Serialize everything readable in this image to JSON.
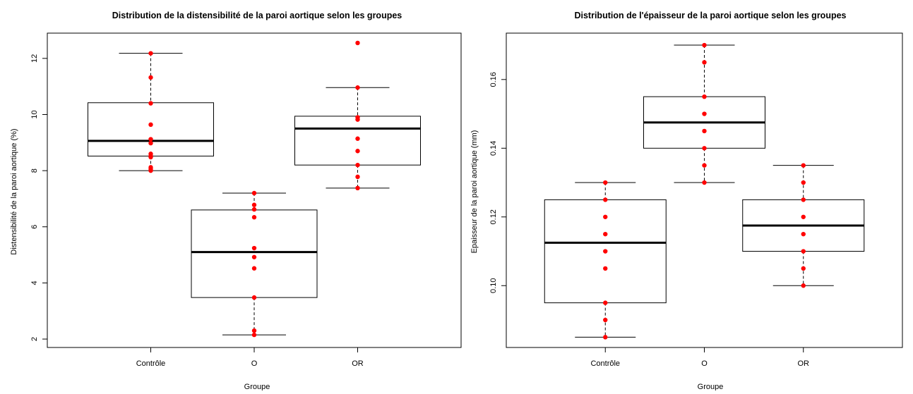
{
  "colors": {
    "points": "#ff0000",
    "box": "#000000",
    "background": "#ffffff"
  },
  "chart_data": [
    {
      "type": "boxplot",
      "title": "Distribution de la distensibilité de la paroi aortique selon les groupes",
      "xlabel": "Groupe",
      "ylabel": "Distensibilité de la paroi aortique (%)",
      "categories": [
        "Contrôle",
        "O",
        "OR"
      ],
      "ylim": [
        1.7,
        12.9
      ],
      "yticks": [
        2,
        4,
        6,
        8,
        10,
        12
      ],
      "ytick_labels": [
        "2",
        "4",
        "6",
        "8",
        "10",
        "12"
      ],
      "boxes": [
        {
          "category": "Contrôle",
          "min": 8.0,
          "q1": 8.52,
          "median": 9.06,
          "q3": 10.42,
          "max": 12.18
        },
        {
          "category": "O",
          "min": 2.15,
          "q1": 3.48,
          "median": 5.1,
          "q3": 6.6,
          "max": 7.2
        },
        {
          "category": "OR",
          "min": 7.38,
          "q1": 8.2,
          "median": 9.5,
          "q3": 9.94,
          "max": 10.96
        }
      ],
      "points": [
        {
          "category": "Contrôle",
          "values": [
            12.18,
            11.32,
            10.4,
            9.64,
            9.12,
            8.98,
            8.6,
            8.52,
            8.48,
            8.12,
            8.06,
            8.0
          ]
        },
        {
          "category": "O",
          "values": [
            7.2,
            6.78,
            6.62,
            6.34,
            5.24,
            4.92,
            4.52,
            3.48,
            2.3,
            2.15
          ]
        },
        {
          "category": "OR",
          "values": [
            12.55,
            10.96,
            9.9,
            9.82,
            9.14,
            8.7,
            8.2,
            7.78,
            7.38
          ]
        }
      ],
      "grid": false
    },
    {
      "type": "boxplot",
      "title": "Distribution de l'épaisseur de la paroi aortique selon les groupes",
      "xlabel": "Groupe",
      "ylabel": "Epaisseur de la paroi aortique (mm)",
      "categories": [
        "Contrôle",
        "O",
        "OR"
      ],
      "ylim": [
        0.082,
        0.1735
      ],
      "yticks": [
        0.1,
        0.12,
        0.14,
        0.16
      ],
      "ytick_labels": [
        "0.10",
        "0.12",
        "0.14",
        "0.16"
      ],
      "boxes": [
        {
          "category": "Contrôle",
          "min": 0.085,
          "q1": 0.095,
          "median": 0.1125,
          "q3": 0.125,
          "max": 0.13
        },
        {
          "category": "O",
          "min": 0.13,
          "q1": 0.14,
          "median": 0.1475,
          "q3": 0.155,
          "max": 0.17
        },
        {
          "category": "OR",
          "min": 0.1,
          "q1": 0.11,
          "median": 0.1175,
          "q3": 0.125,
          "max": 0.135
        }
      ],
      "points": [
        {
          "category": "Contrôle",
          "values": [
            0.13,
            0.125,
            0.12,
            0.115,
            0.11,
            0.105,
            0.095,
            0.09,
            0.085
          ]
        },
        {
          "category": "O",
          "values": [
            0.17,
            0.165,
            0.155,
            0.15,
            0.145,
            0.14,
            0.135,
            0.13
          ]
        },
        {
          "category": "OR",
          "values": [
            0.135,
            0.13,
            0.125,
            0.12,
            0.115,
            0.11,
            0.105,
            0.1
          ]
        }
      ],
      "grid": false
    }
  ]
}
